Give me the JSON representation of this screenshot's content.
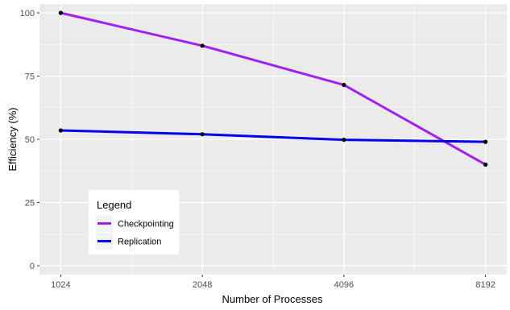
{
  "chart_data": {
    "type": "line",
    "title": "",
    "xlabel": "Number of Processes",
    "ylabel": "Efficiency (%)",
    "x": [
      1024,
      2048,
      4096,
      8192
    ],
    "x_tick_labels": [
      "1024",
      "2048",
      "4096",
      "8192"
    ],
    "y_ticks": [
      0,
      25,
      50,
      75,
      100
    ],
    "y_tick_labels": [
      "0",
      "25",
      "50",
      "75",
      "100"
    ],
    "ylim": [
      -3.5,
      103.5
    ],
    "x_scale": "log2",
    "grid": true,
    "legend": {
      "title": "Legend",
      "placement": "bottom-left"
    },
    "series": [
      {
        "name": "Checkpointing",
        "color": "#a020f0",
        "values": [
          100,
          87,
          71.5,
          40
        ]
      },
      {
        "name": "Replication",
        "color": "#0000ee",
        "values": [
          53.5,
          52,
          49.8,
          49
        ]
      }
    ],
    "point_color": "#000000",
    "panel_background": "#ebebeb",
    "grid_color": "#ffffff"
  }
}
